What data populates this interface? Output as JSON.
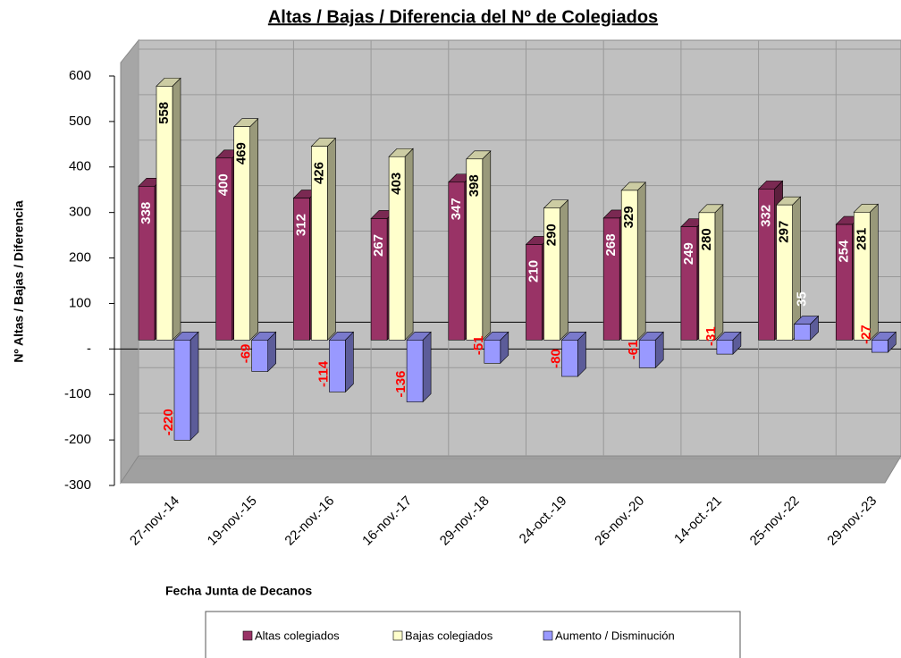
{
  "chart_data": {
    "type": "bar3d",
    "title": "Altas / Bajas / Diferencia del Nº de Colegiados",
    "y_label": "Nº Altas / Bajas / Diferencia",
    "x_label": "Fecha Junta de Decanos",
    "categories": [
      "27-nov.-14",
      "19-nov.-15",
      "22-nov.-16",
      "16-nov.-17",
      "29-nov.-18",
      "24-oct.-19",
      "26-nov.-20",
      "14-oct.-21",
      "25-nov.-22",
      "29-nov.-23"
    ],
    "series": [
      {
        "name": "Altas colegiados",
        "color": "#993366",
        "values": [
          338,
          400,
          312,
          267,
          347,
          210,
          268,
          249,
          332,
          254
        ]
      },
      {
        "name": "Bajas colegiados",
        "color": "#ffffcc",
        "values": [
          558,
          469,
          426,
          403,
          398,
          290,
          329,
          280,
          297,
          281
        ]
      },
      {
        "name": "Aumento / Disminución",
        "color": "#9999ff",
        "values": [
          -220,
          -69,
          -114,
          -136,
          -51,
          -80,
          -61,
          -31,
          35,
          -27
        ]
      }
    ],
    "ylim": [
      -300,
      600
    ],
    "yticks": [
      600,
      500,
      400,
      300,
      200,
      100,
      {
        "value": 0,
        "label": "-"
      },
      -100,
      -200,
      -300
    ],
    "grid": true,
    "legend": "bottom"
  }
}
